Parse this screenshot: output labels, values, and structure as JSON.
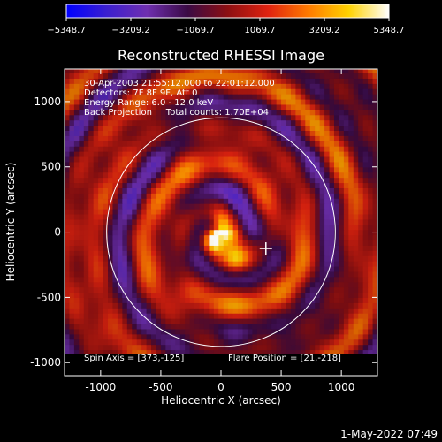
{
  "chart_data": {
    "type": "heatmap",
    "title": "Reconstructed RHESSI Image",
    "xlabel": "Heliocentric X (arcsec)",
    "ylabel": "Heliocentric Y (arcsec)",
    "xlim": [
      -1300,
      1300
    ],
    "ylim": [
      -1100,
      1250
    ],
    "x_ticks": [
      -1000,
      -500,
      0,
      500,
      1000
    ],
    "y_ticks": [
      -1000,
      -500,
      0,
      500,
      1000
    ],
    "colorbar": {
      "min": -5348.7,
      "max": 5348.7,
      "tick_values": [
        -5348.7,
        -3209.2,
        -1069.7,
        1069.7,
        3209.2,
        5348.7
      ],
      "tick_labels": [
        "−5348.7",
        "−3209.2",
        "−1069.7",
        "1069.7",
        "3209.2",
        "5348.7"
      ],
      "colormap": [
        "#0000ff",
        "#3b1fd0",
        "#6f2fb0",
        "#3a0a45",
        "#8c0f12",
        "#e02210",
        "#ff7a00",
        "#ffd200",
        "#ffffff"
      ]
    },
    "solar_limb_radius": 950,
    "flare_marker": {
      "x": 373,
      "y": -125
    },
    "bright_sources": [
      {
        "x": -40,
        "y": -40,
        "value": 5000
      },
      {
        "x": 120,
        "y": -200,
        "value": 4200
      }
    ],
    "info_lines": [
      "30-Apr-2003 21:55:12.000 to 22:01:12.000",
      "Detectors: 7F 8F 9F, Att 0",
      "Energy Range: 6.0 - 12.0 keV",
      "Back Projection     Total counts: 1.70E+04"
    ],
    "spin_axis_text": "Spin Axis = [373,-125]",
    "flare_position_text": "Flare Position = [21,-218]",
    "timestamp": "1-May-2022 07:49"
  }
}
